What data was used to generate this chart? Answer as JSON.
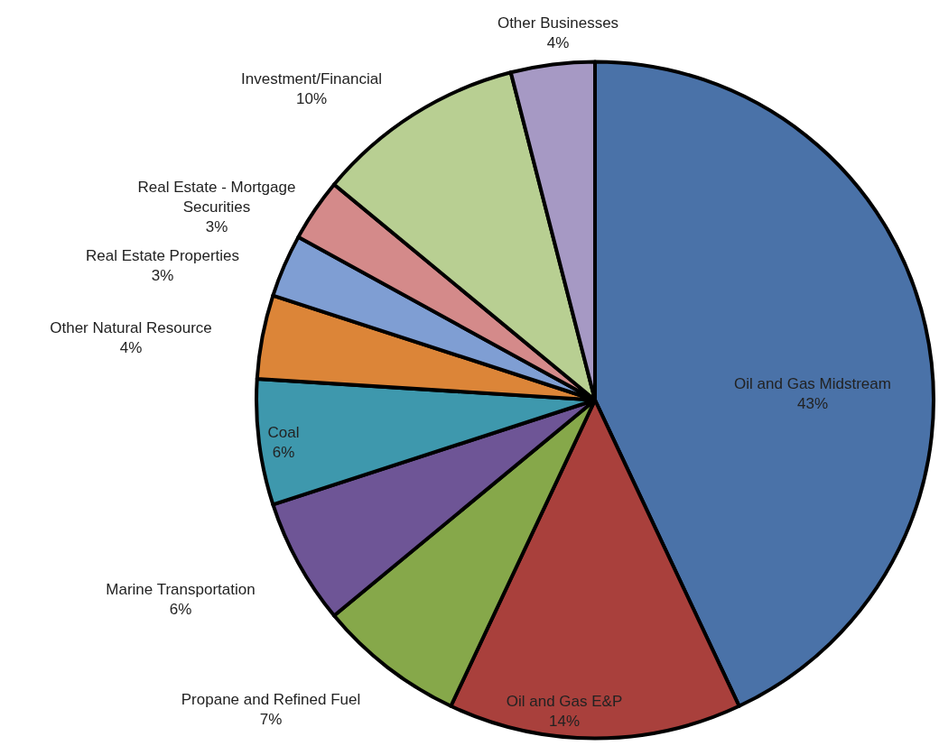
{
  "chart_data": {
    "type": "pie",
    "categories": [
      "Oil and Gas Midstream",
      "Oil and Gas E&P",
      "Propane and Refined Fuel",
      "Marine Transportation",
      "Coal",
      "Other Natural Resource",
      "Real Estate Properties",
      "Real Estate - Mortgage Securities",
      "Investment/Financial",
      "Other Businesses"
    ],
    "values": [
      43,
      14,
      7,
      6,
      6,
      4,
      3,
      3,
      10,
      4
    ],
    "colors": [
      "#4a72a8",
      "#a9403c",
      "#86a84a",
      "#6e5596",
      "#3e98ad",
      "#dc8538",
      "#7f9ed3",
      "#d48a8a",
      "#b8cf92",
      "#a699c4"
    ],
    "value_labels": [
      "43%",
      "14%",
      "7%",
      "6%",
      "6%",
      "4%",
      "3%",
      "3%",
      "10%",
      "4%"
    ],
    "legend": false
  }
}
